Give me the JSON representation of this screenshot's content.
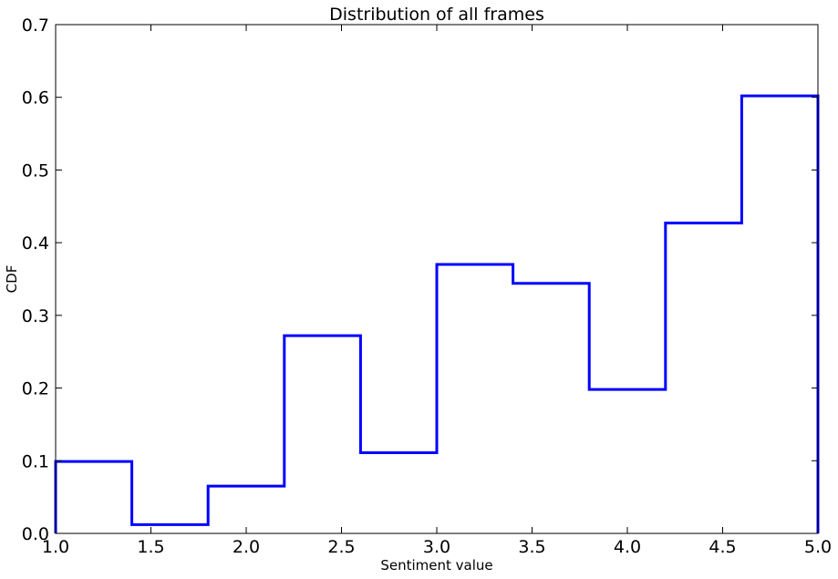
{
  "chart_data": {
    "type": "line",
    "drawstyle": "steps-post histogram",
    "title": "Distribution of all frames",
    "xlabel": "Sentiment value",
    "ylabel": "CDF",
    "xlim": [
      1.0,
      5.0
    ],
    "ylim": [
      0.0,
      0.7
    ],
    "grid": false,
    "legend": null,
    "xticks": [
      1.0,
      1.5,
      2.0,
      2.5,
      3.0,
      3.5,
      4.0,
      4.5,
      5.0
    ],
    "xtick_labels": [
      "1.0",
      "1.5",
      "2.0",
      "2.5",
      "3.0",
      "3.5",
      "4.0",
      "4.5",
      "5.0"
    ],
    "yticks": [
      0.0,
      0.1,
      0.2,
      0.3,
      0.4,
      0.5,
      0.6,
      0.7
    ],
    "ytick_labels": [
      "0.0",
      "0.1",
      "0.2",
      "0.3",
      "0.4",
      "0.5",
      "0.6",
      "0.7"
    ],
    "series": [
      {
        "color": "#0000ff",
        "bin_edges": [
          1.0,
          1.4,
          1.8,
          2.2,
          2.6,
          3.0,
          3.4,
          3.8,
          4.2,
          4.6,
          5.0
        ],
        "values": [
          0.099,
          0.012,
          0.065,
          0.272,
          0.111,
          0.37,
          0.344,
          0.198,
          0.427,
          0.602
        ]
      }
    ]
  }
}
